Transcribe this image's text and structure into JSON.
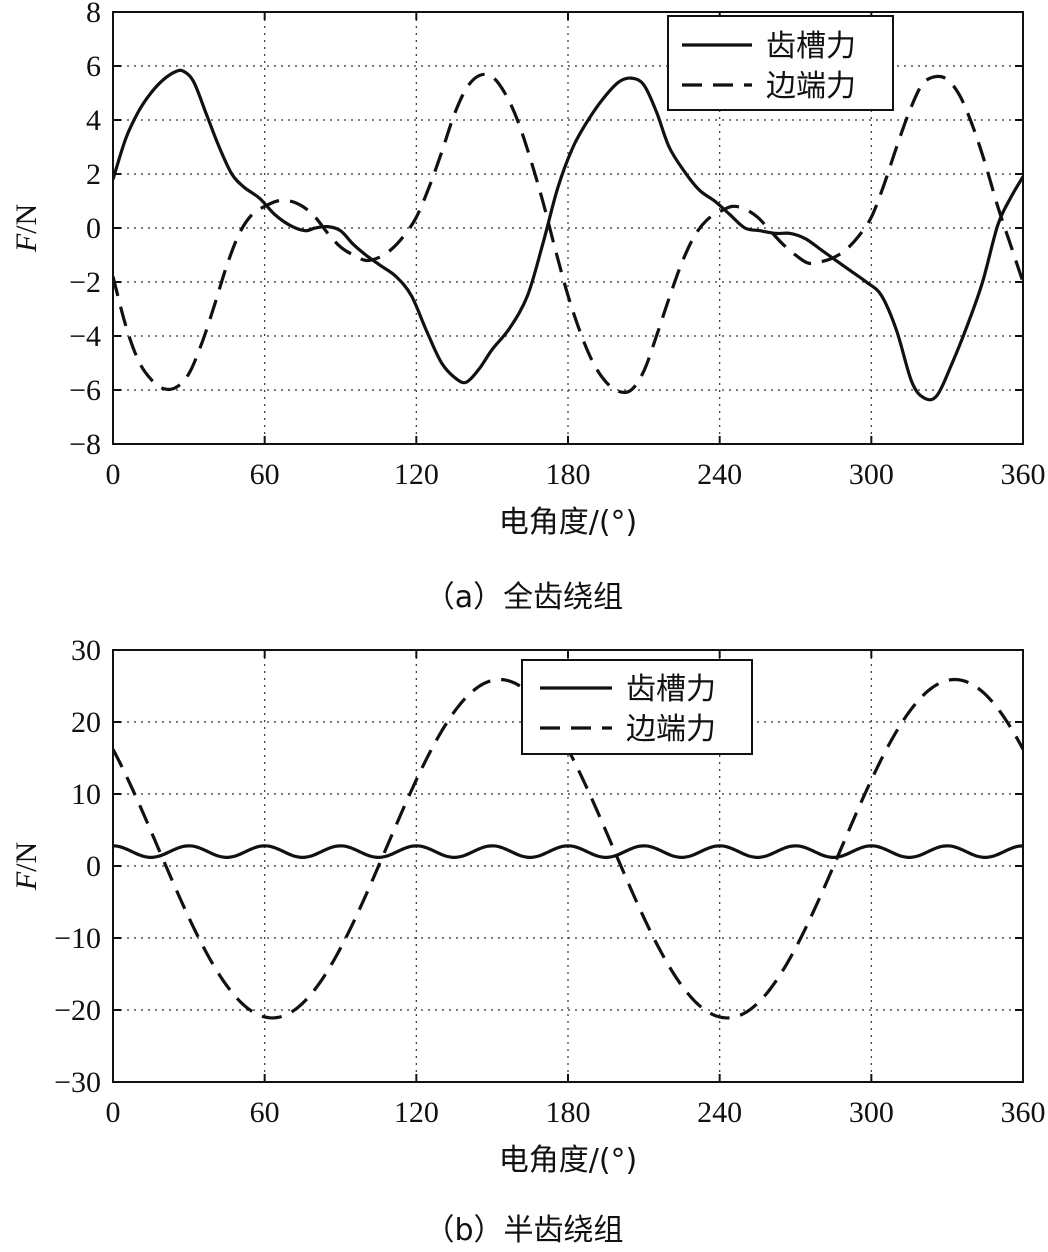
{
  "chart_data": [
    {
      "type": "line",
      "caption": "（a）全齿绕组",
      "xlabel": "电角度/(°)",
      "ylabel_italic": "F",
      "ylabel_rest": "/N",
      "xlim": [
        0,
        360
      ],
      "ylim": [
        -8,
        8
      ],
      "xticks": [
        0,
        60,
        120,
        180,
        240,
        300,
        360
      ],
      "yticks": [
        -8,
        -6,
        -4,
        -2,
        0,
        2,
        4,
        6,
        8
      ],
      "ytick_labels": [
        "−8",
        "−6",
        "−4",
        "−2",
        "0",
        "2",
        "4",
        "6",
        "8"
      ],
      "grid": true,
      "legend_position": "top-right",
      "series": [
        {
          "name": "齿槽力",
          "style": "solid",
          "x": [
            0,
            5,
            10,
            15,
            20,
            25,
            28,
            32,
            37,
            42,
            47,
            52,
            58,
            64,
            70,
            76,
            80,
            85,
            90,
            95,
            100,
            106,
            112,
            118,
            124,
            130,
            136,
            140,
            145,
            150,
            157,
            164,
            170,
            176,
            182,
            188,
            194,
            200,
            205,
            210,
            215,
            220,
            226,
            232,
            238,
            244,
            250,
            256,
            262,
            268,
            274,
            280,
            286,
            292,
            298,
            304,
            310,
            316,
            321,
            326,
            332,
            338,
            344,
            350,
            355,
            360
          ],
          "y": [
            1.8,
            3.3,
            4.3,
            5.0,
            5.5,
            5.8,
            5.8,
            5.4,
            4.2,
            3.0,
            2.0,
            1.5,
            1.1,
            0.5,
            0.1,
            -0.1,
            0.0,
            0.05,
            -0.1,
            -0.6,
            -1.0,
            -1.4,
            -1.8,
            -2.5,
            -3.8,
            -5.0,
            -5.6,
            -5.7,
            -5.2,
            -4.5,
            -3.7,
            -2.5,
            -0.6,
            1.5,
            3.0,
            4.0,
            4.8,
            5.4,
            5.55,
            5.3,
            4.3,
            3.0,
            2.1,
            1.4,
            1.0,
            0.5,
            0.0,
            -0.1,
            -0.2,
            -0.2,
            -0.4,
            -0.8,
            -1.2,
            -1.6,
            -2.0,
            -2.5,
            -3.8,
            -5.7,
            -6.3,
            -6.2,
            -5.0,
            -3.6,
            -2.0,
            0.1,
            1.1,
            1.9
          ]
        },
        {
          "name": "边端力",
          "style": "dashed",
          "x": [
            0,
            5,
            10,
            15,
            20,
            25,
            30,
            35,
            40,
            45,
            50,
            55,
            60,
            65,
            70,
            75,
            80,
            85,
            90,
            95,
            100,
            105,
            110,
            115,
            120,
            125,
            130,
            135,
            140,
            145,
            150,
            155,
            160,
            165,
            170,
            175,
            180,
            185,
            190,
            195,
            200,
            205,
            210,
            215,
            220,
            225,
            230,
            235,
            240,
            245,
            250,
            255,
            260,
            265,
            270,
            275,
            280,
            285,
            290,
            295,
            300,
            305,
            310,
            315,
            320,
            325,
            330,
            335,
            340,
            345,
            350,
            355,
            360
          ],
          "y": [
            -1.8,
            -3.6,
            -4.9,
            -5.6,
            -5.95,
            -5.9,
            -5.4,
            -4.3,
            -2.9,
            -1.4,
            -0.2,
            0.5,
            0.8,
            1.0,
            1.0,
            0.8,
            0.4,
            -0.2,
            -0.7,
            -1.0,
            -1.2,
            -1.1,
            -0.8,
            -0.3,
            0.4,
            1.5,
            2.8,
            4.2,
            5.2,
            5.65,
            5.6,
            5.0,
            4.0,
            2.6,
            1.0,
            -0.8,
            -2.5,
            -3.9,
            -5.0,
            -5.7,
            -6.05,
            -6.0,
            -5.3,
            -4.0,
            -2.6,
            -1.3,
            -0.3,
            0.3,
            0.6,
            0.8,
            0.7,
            0.4,
            -0.1,
            -0.6,
            -1.0,
            -1.3,
            -1.25,
            -1.1,
            -0.8,
            -0.3,
            0.4,
            1.6,
            3.0,
            4.3,
            5.3,
            5.6,
            5.5,
            4.9,
            3.8,
            2.4,
            0.8,
            -0.6,
            -2.0
          ]
        }
      ]
    },
    {
      "type": "line",
      "caption": "（b）半齿绕组",
      "xlabel": "电角度/(°)",
      "ylabel_italic": "F",
      "ylabel_rest": "/N",
      "xlim": [
        0,
        360
      ],
      "ylim": [
        -30,
        30
      ],
      "xticks": [
        0,
        60,
        120,
        180,
        240,
        300,
        360
      ],
      "yticks": [
        -30,
        -20,
        -10,
        0,
        10,
        20,
        30
      ],
      "ytick_labels": [
        "−30",
        "−20",
        "−10",
        "0",
        "10",
        "20",
        "30"
      ],
      "grid": true,
      "legend_position": "top-right",
      "series": [
        {
          "name": "齿槽力",
          "style": "solid",
          "function": "ripple",
          "offset": 2.0,
          "amplitude": 0.8,
          "period": 30
        },
        {
          "name": "边端力",
          "style": "dashed",
          "function": "sine",
          "amplitude": 23.5,
          "mean": 2.4,
          "phase": -18
        }
      ]
    }
  ]
}
